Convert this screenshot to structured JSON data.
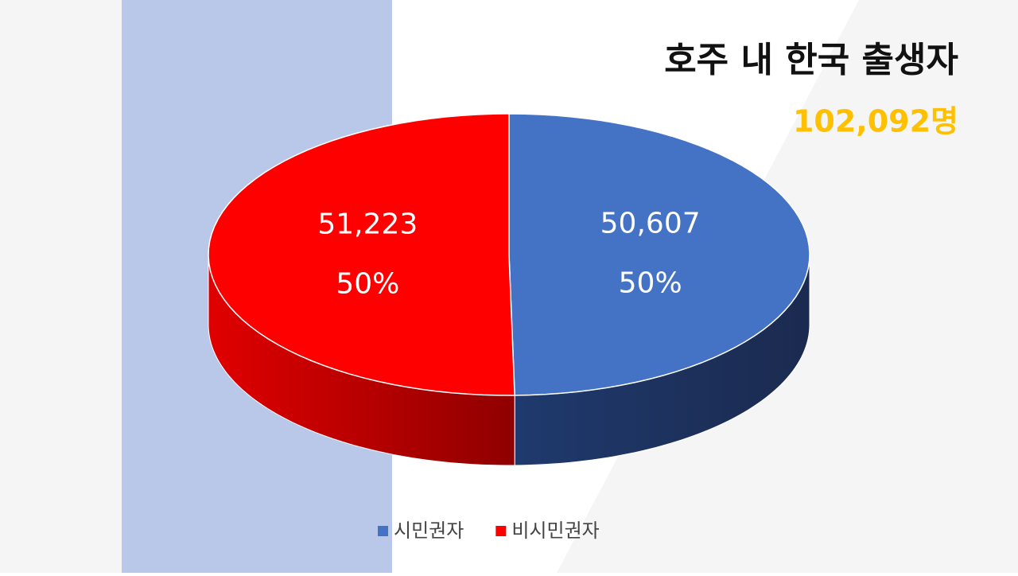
{
  "chart_data": {
    "type": "pie",
    "title": "호주 내 한국 출생자",
    "subtitle": "102,092명",
    "categories": [
      "시민권자",
      "비시민권자"
    ],
    "values": [
      50607,
      51223
    ],
    "value_labels": [
      "50,607",
      "51,223"
    ],
    "percentages": [
      50,
      50
    ],
    "percentage_labels": [
      "50%",
      "50%"
    ],
    "colors": [
      "#4472c4",
      "#ff0000"
    ],
    "legend": "bottom"
  }
}
